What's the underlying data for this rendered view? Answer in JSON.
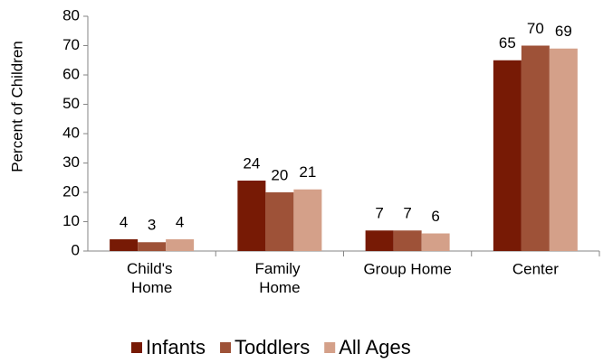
{
  "chart_data": {
    "type": "bar",
    "y_label": "Percent of Children",
    "categories": [
      "Child's Home",
      "Family Home",
      "Group Home",
      "Center"
    ],
    "series": [
      {
        "name": "Infants",
        "color": "#771a05",
        "values": [
          4,
          24,
          7,
          65
        ]
      },
      {
        "name": "Toddlers",
        "color": "#9e5238",
        "values": [
          3,
          20,
          7,
          70
        ]
      },
      {
        "name": "All Ages",
        "color": "#d4a089",
        "values": [
          4,
          21,
          6,
          69
        ]
      }
    ],
    "ylim": [
      0,
      80
    ],
    "yticks": [
      0,
      10,
      20,
      30,
      40,
      50,
      60,
      70,
      80
    ],
    "grid": false,
    "legend": "bottom"
  }
}
